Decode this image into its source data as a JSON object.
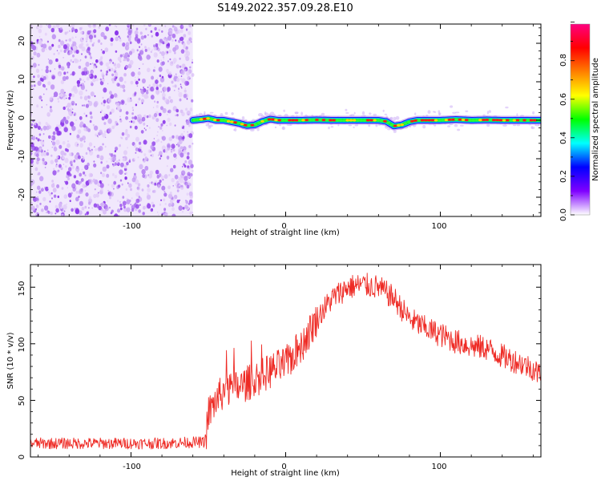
{
  "title": "S149.2022.357.09.28.E10",
  "chart_data": [
    {
      "type": "heatmap",
      "title": "S149.2022.357.09.28.E10",
      "xlabel": "Height of straight line (km)",
      "ylabel": "Frequency (Hz)",
      "xlim": [
        -165,
        165
      ],
      "ylim": [
        -25,
        25
      ],
      "x_ticks": [
        "-100",
        "0",
        "100"
      ],
      "y_ticks": [
        "20",
        "10",
        "0",
        "-10",
        "-20"
      ],
      "noise_region_x": [
        -165,
        -60
      ],
      "signal_trace": {
        "x": [
          -60,
          -55,
          -50,
          -45,
          -40,
          -35,
          -30,
          -25,
          -20,
          -15,
          -10,
          -5,
          0,
          10,
          20,
          30,
          40,
          50,
          60,
          65,
          70,
          75,
          80,
          85,
          90,
          100,
          110,
          120,
          130,
          140,
          150,
          160,
          165
        ],
        "y": [
          0,
          0.2,
          0.5,
          0,
          0,
          -0.4,
          -0.8,
          -1.4,
          -1.2,
          -0.3,
          0.3,
          0,
          0,
          0,
          0.1,
          0,
          0,
          0,
          0,
          -0.3,
          -1.5,
          -1.2,
          -0.4,
          0,
          0,
          0,
          0.2,
          0,
          0.1,
          0,
          0,
          0,
          0
        ]
      },
      "colorbar": {
        "label": "Normalized spectral amplitude",
        "range": [
          0,
          1
        ],
        "ticks": [
          "0.0",
          "0.2",
          "0.4",
          "0.6",
          "0.8"
        ],
        "colormap": [
          "#ffffff",
          "#7f00ff",
          "#0000ff",
          "#00ffff",
          "#00ff00",
          "#ffff00",
          "#ff7f00",
          "#ff0000",
          "#ff0080"
        ]
      }
    },
    {
      "type": "line",
      "xlabel": "Height of straight line (km)",
      "ylabel": "SNR (10 * v/v)",
      "xlim": [
        -165,
        165
      ],
      "ylim": [
        0,
        170
      ],
      "x_ticks": [
        "-100",
        "0",
        "100"
      ],
      "y_ticks": [
        "0",
        "50",
        "100",
        "150"
      ],
      "color": "#ee2a24",
      "series": [
        {
          "x": [
            -165,
            -140,
            -120,
            -100,
            -80,
            -60,
            -52,
            -50,
            -45,
            -40,
            -30,
            -20,
            -10,
            0,
            10,
            20,
            30,
            40,
            50,
            60,
            70,
            80,
            90,
            100,
            110,
            120,
            130,
            140,
            150,
            160,
            165
          ],
          "y": [
            12,
            12,
            12,
            12,
            12,
            13,
            13,
            38,
            50,
            58,
            62,
            68,
            76,
            82,
            98,
            122,
            140,
            150,
            152,
            150,
            140,
            122,
            114,
            108,
            102,
            98,
            96,
            89,
            84,
            78,
            72
          ]
        }
      ]
    }
  ]
}
